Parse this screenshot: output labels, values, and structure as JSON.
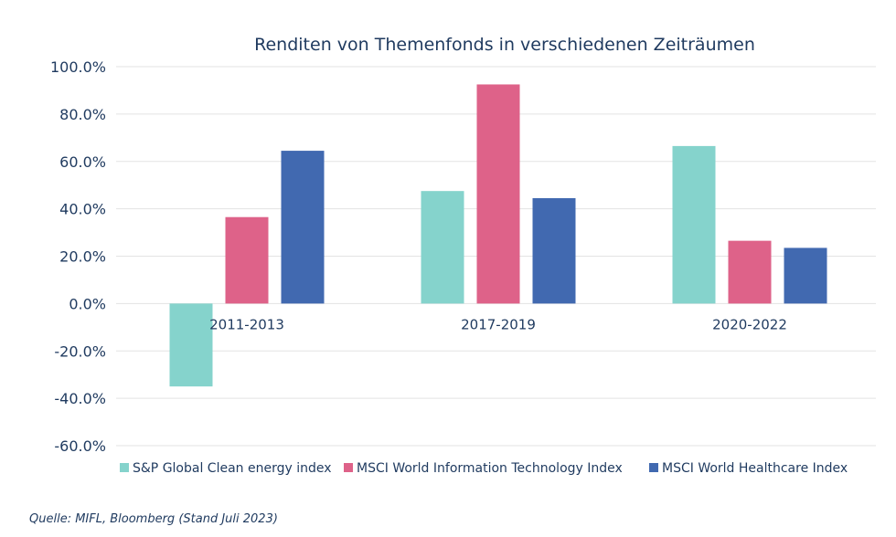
{
  "chart_data": {
    "type": "bar",
    "title": "Renditen von Themenfonds in verschiedenen Zeiträumen",
    "xlabel": "",
    "ylabel": "",
    "categories": [
      "2011-2013",
      "2017-2019",
      "2020-2022"
    ],
    "series": [
      {
        "name": "S&P Global Clean energy index",
        "color": "#85d3cc",
        "values": [
          -35.0,
          47.5,
          66.5
        ]
      },
      {
        "name": "MSCI World Information Technology Index",
        "color": "#de6289",
        "values": [
          36.5,
          92.5,
          26.5
        ]
      },
      {
        "name": "MSCI World Healthcare Index",
        "color": "#4169b0",
        "values": [
          64.5,
          44.5,
          23.5
        ]
      }
    ],
    "ylim": [
      -60,
      100
    ],
    "yticks": [
      100,
      80,
      60,
      40,
      20,
      0,
      -20,
      -40,
      -60
    ],
    "ytick_labels": [
      "100.0%",
      "80.0%",
      "60.0%",
      "40.0%",
      "20.0%",
      "0.0%",
      "-20.0%",
      "-40.0%",
      "-60.0%"
    ],
    "grid": true,
    "legend_position": "bottom"
  },
  "source": "Quelle: MIFL, Bloomberg (Stand Juli 2023)"
}
